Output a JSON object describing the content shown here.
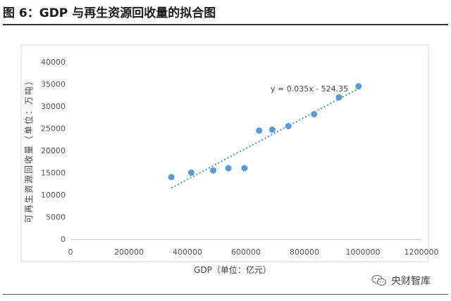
{
  "figure": {
    "title": "图 6：GDP 与再生资源回收量的拟合图"
  },
  "watermark": {
    "text": "央财智库",
    "icon": "wechat-icon"
  },
  "colors": {
    "point": "#5b9bd5",
    "trend": "#4a90c9",
    "axis_text": "#555555",
    "border": "#d9d9d9"
  },
  "chart_data": {
    "type": "scatter",
    "title": "",
    "xlabel": "GDP（单位：亿元）",
    "ylabel": "可再生资源回收量（单位：万吨）",
    "xlim": [
      0,
      1200000
    ],
    "ylim": [
      0,
      40000
    ],
    "x_ticks": [
      "0",
      "200000",
      "400000",
      "600000",
      "800000",
      "1000000",
      "1200000"
    ],
    "y_ticks": [
      "0",
      "5000",
      "10000",
      "15000",
      "20000",
      "25000",
      "30000",
      "35000",
      "40000"
    ],
    "points": [
      {
        "x": 345000,
        "y": 14000
      },
      {
        "x": 413000,
        "y": 15000
      },
      {
        "x": 488000,
        "y": 15500
      },
      {
        "x": 540000,
        "y": 16000
      },
      {
        "x": 595000,
        "y": 16000
      },
      {
        "x": 645000,
        "y": 24500
      },
      {
        "x": 690000,
        "y": 24700
      },
      {
        "x": 745000,
        "y": 25500
      },
      {
        "x": 833000,
        "y": 28200
      },
      {
        "x": 918000,
        "y": 32000
      },
      {
        "x": 985000,
        "y": 34500
      }
    ],
    "trendline": {
      "slope": 0.035,
      "intercept": -524.35,
      "equation": "y = 0.035x - 524.35",
      "x_range": [
        345000,
        985000
      ]
    },
    "grid": false,
    "legend": "none"
  }
}
